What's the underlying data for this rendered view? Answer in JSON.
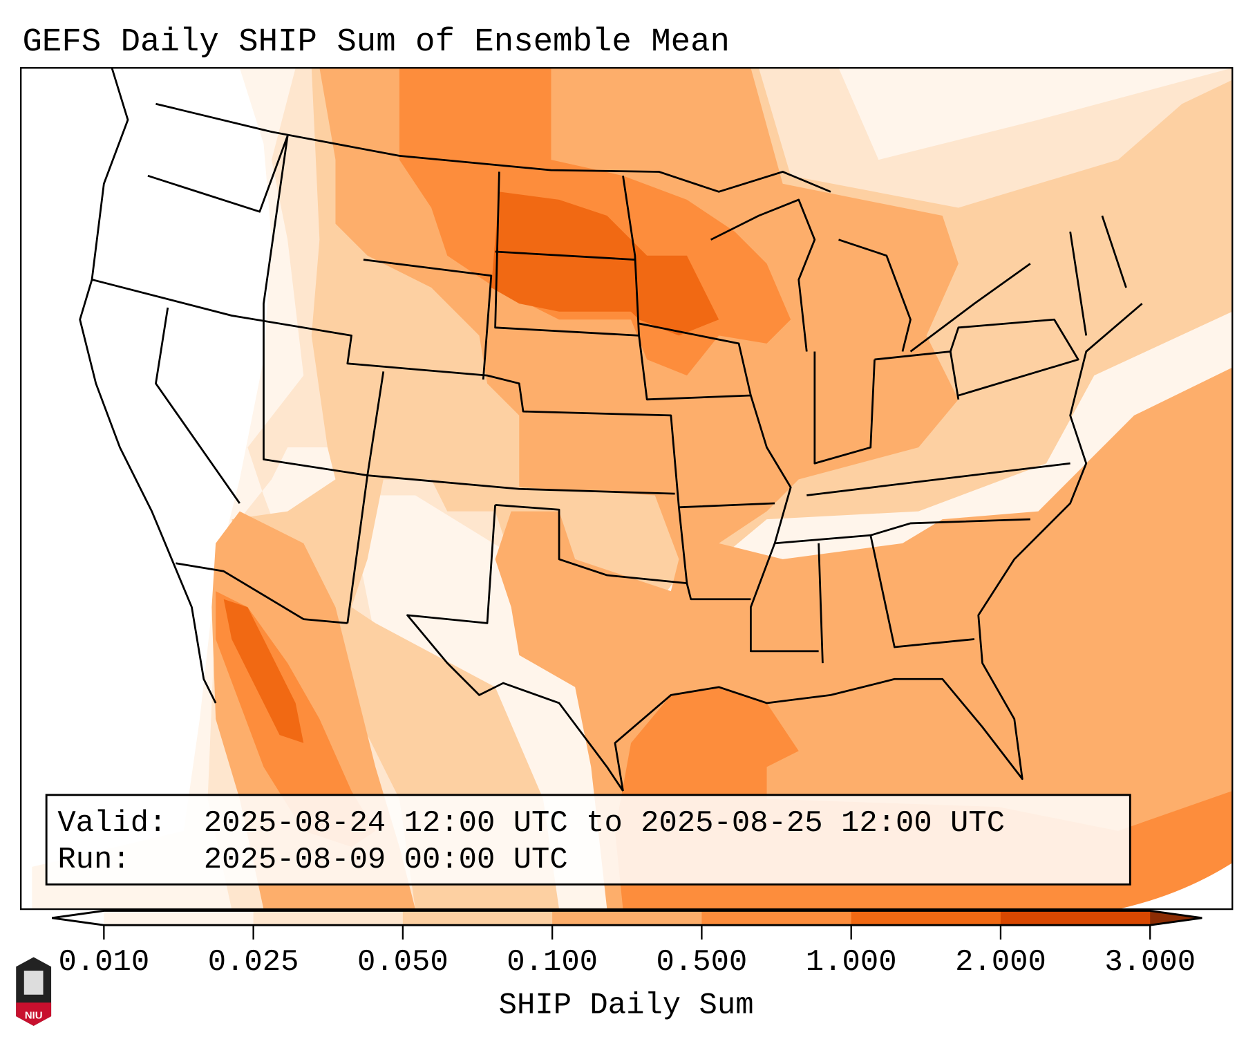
{
  "title": "GEFS Daily SHIP Sum of Ensemble Mean",
  "info_box": {
    "valid_label": "Valid:",
    "valid_text": "2025-08-24 12:00 UTC to 2025-08-25 12:00 UTC",
    "run_label": "Run:",
    "run_text": "2025-08-09 00:00 UTC"
  },
  "colorbar": {
    "label": "SHIP Daily Sum",
    "ticks": [
      "0.010",
      "0.025",
      "0.050",
      "0.100",
      "0.500",
      "1.000",
      "2.000",
      "3.000"
    ],
    "colors": [
      "#fff5eb",
      "#fee6ce",
      "#fdd0a2",
      "#fdae6b",
      "#fd8d3c",
      "#f16913",
      "#d94801",
      "#8c2d04"
    ]
  },
  "logo": {
    "text": "NIU"
  },
  "colors": {
    "lvl1": "#fff5eb",
    "lvl2": "#fee6ce",
    "lvl3": "#fdd0a2",
    "lvl4": "#fdae6b",
    "lvl5": "#fd8d3c",
    "lvl6": "#f16913"
  }
}
